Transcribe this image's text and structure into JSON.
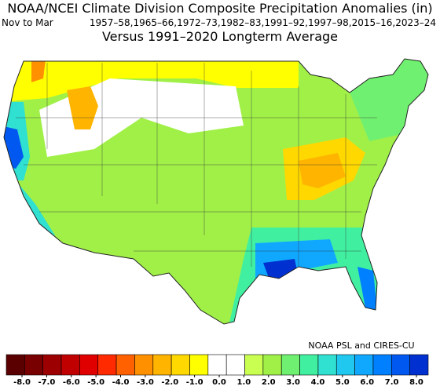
{
  "header": {
    "title": "NOAA/NCEI Climate Division Composite Precipitation Anomalies (in)",
    "season": "Nov to Mar",
    "years": "1957–58,1965–66,1972–73,1982–83,1991–92,1997–98,2015–16,2023–24",
    "subtitle": "Versus 1991–2020 Longterm Average"
  },
  "credit": "NOAA PSL and CIRES-CU",
  "colorbar": {
    "colors": [
      "#5a0000",
      "#780000",
      "#9c0000",
      "#c00000",
      "#e00000",
      "#ff2a00",
      "#ff6000",
      "#ff9000",
      "#ffb400",
      "#ffd800",
      "#ffff00",
      "#ffffff",
      "#ffffff",
      "#c8ff50",
      "#a0f048",
      "#70f070",
      "#40f0a0",
      "#30e0d0",
      "#20c8f0",
      "#10a8ff",
      "#0080ff",
      "#0058f0",
      "#0030d0"
    ],
    "ticks": [
      {
        "value": -8,
        "label": "-8.0"
      },
      {
        "value": -7,
        "label": "-7.0"
      },
      {
        "value": -6,
        "label": "-6.0"
      },
      {
        "value": -5,
        "label": "-5.0"
      },
      {
        "value": -4,
        "label": "-4.0"
      },
      {
        "value": -3,
        "label": "-3.0"
      },
      {
        "value": -2,
        "label": "-2.0"
      },
      {
        "value": -1,
        "label": "-1.0"
      },
      {
        "value": 0,
        "label": "0.0"
      },
      {
        "value": 1,
        "label": "1.0"
      },
      {
        "value": 2,
        "label": "2.0"
      },
      {
        "value": 3,
        "label": "3.0"
      },
      {
        "value": 4,
        "label": "4.0"
      },
      {
        "value": 5,
        "label": "5.0"
      },
      {
        "value": 6,
        "label": "6.0"
      },
      {
        "value": 7,
        "label": "7.0"
      },
      {
        "value": 8,
        "label": "8.0"
      }
    ]
  }
}
